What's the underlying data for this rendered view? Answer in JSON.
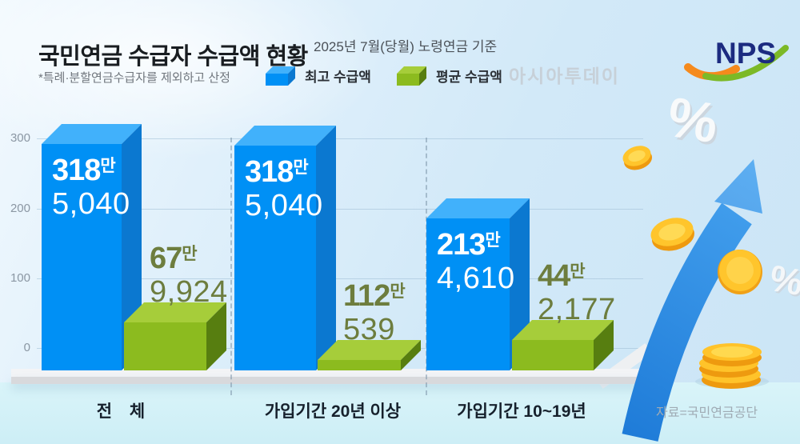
{
  "header": {
    "title": "국민연금 수급자 수급액 현황",
    "subtitle": "2025년 7월(당월) 노령연금 기준",
    "note": "*특례·분할연금수급자를 제외하고 산정",
    "watermark": "아시아투데이",
    "logo": {
      "text": "NPS",
      "text_color": "#1c2b80",
      "swoosh_orange": "#f58a1d",
      "swoosh_green": "#7cb927"
    }
  },
  "footer": {
    "source": "자료=국민연금공단"
  },
  "decor": {
    "percent_large": "%",
    "percent_small": "%",
    "coin_color": "#ffc52c",
    "arrow_color": "#2f94ee"
  },
  "chart_data": {
    "type": "bar",
    "title": "국민연금 수급자 수급액 현황",
    "subtitle": "2025년 7월(당월) 노령연금 기준",
    "categories": [
      "전 체",
      "가입기간 20년 이상",
      "가입기간 10~19년"
    ],
    "y_axis": {
      "ticks": [
        "300",
        "200",
        "100",
        "0"
      ],
      "range": [
        0,
        300
      ],
      "grid": true
    },
    "legend_position": "top",
    "series": [
      {
        "name": "최고 수급액",
        "colors": {
          "front": "#0090f5",
          "top": "#41b1fb",
          "side": "#0b78d0",
          "label": "#ffffff"
        },
        "data": [
          {
            "main": "318",
            "suffix": "만",
            "sub": "5,040",
            "value_won": 3185040
          },
          {
            "main": "318",
            "suffix": "만",
            "sub": "5,040",
            "value_won": 3185040
          },
          {
            "main": "213",
            "suffix": "만",
            "sub": "4,610",
            "value_won": 2134610
          }
        ]
      },
      {
        "name": "평균 수급액",
        "colors": {
          "front": "#8cbb1f",
          "top": "#a6cd3a",
          "side": "#577e10",
          "label": "#6d7d3e"
        },
        "data": [
          {
            "main": "67",
            "suffix": "만",
            "sub": "9,924",
            "value_won": 679924
          },
          {
            "main": "112",
            "suffix": "만",
            "sub": "539",
            "value_won": 1120539
          },
          {
            "main": "44",
            "suffix": "만",
            "sub": "2,177",
            "value_won": 442177
          }
        ]
      }
    ]
  }
}
